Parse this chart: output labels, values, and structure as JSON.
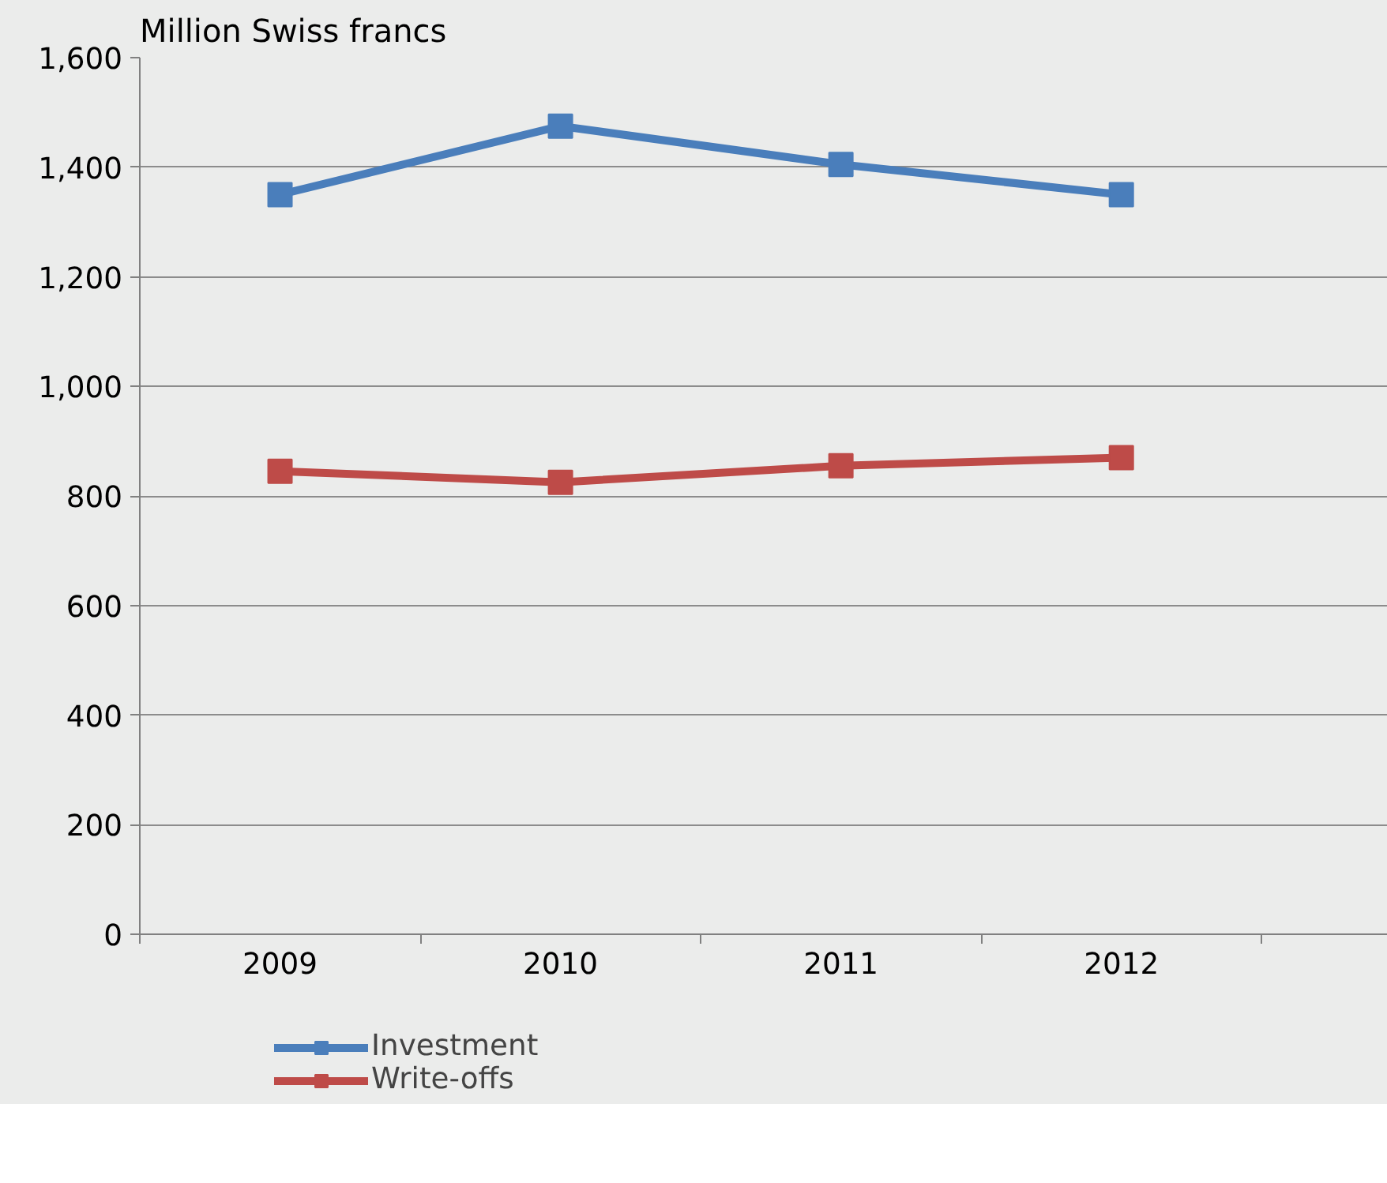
{
  "chart_data": {
    "type": "line",
    "ylabel": "Million Swiss francs",
    "categories": [
      "2009",
      "2010",
      "2011",
      "2012"
    ],
    "series": [
      {
        "name": "Investment",
        "color": "#4a7ebb",
        "values": [
          1350,
          1475,
          1405,
          1350
        ]
      },
      {
        "name": "Write-offs",
        "color": "#be4b48",
        "values": [
          845,
          825,
          855,
          870
        ]
      }
    ],
    "ylim": [
      0,
      1600
    ],
    "yticks": [
      {
        "value": 0,
        "label": "0"
      },
      {
        "value": 200,
        "label": "200"
      },
      {
        "value": 400,
        "label": "400"
      },
      {
        "value": 600,
        "label": "600"
      },
      {
        "value": 800,
        "label": "800"
      },
      {
        "value": 1000,
        "label": "1,000"
      },
      {
        "value": 1200,
        "label": "1,200"
      },
      {
        "value": 1400,
        "label": "1,400"
      },
      {
        "value": 1600,
        "label": "1,600"
      }
    ],
    "grid": "y",
    "legend": "bottom",
    "marker": "square",
    "line_style": "solid"
  }
}
